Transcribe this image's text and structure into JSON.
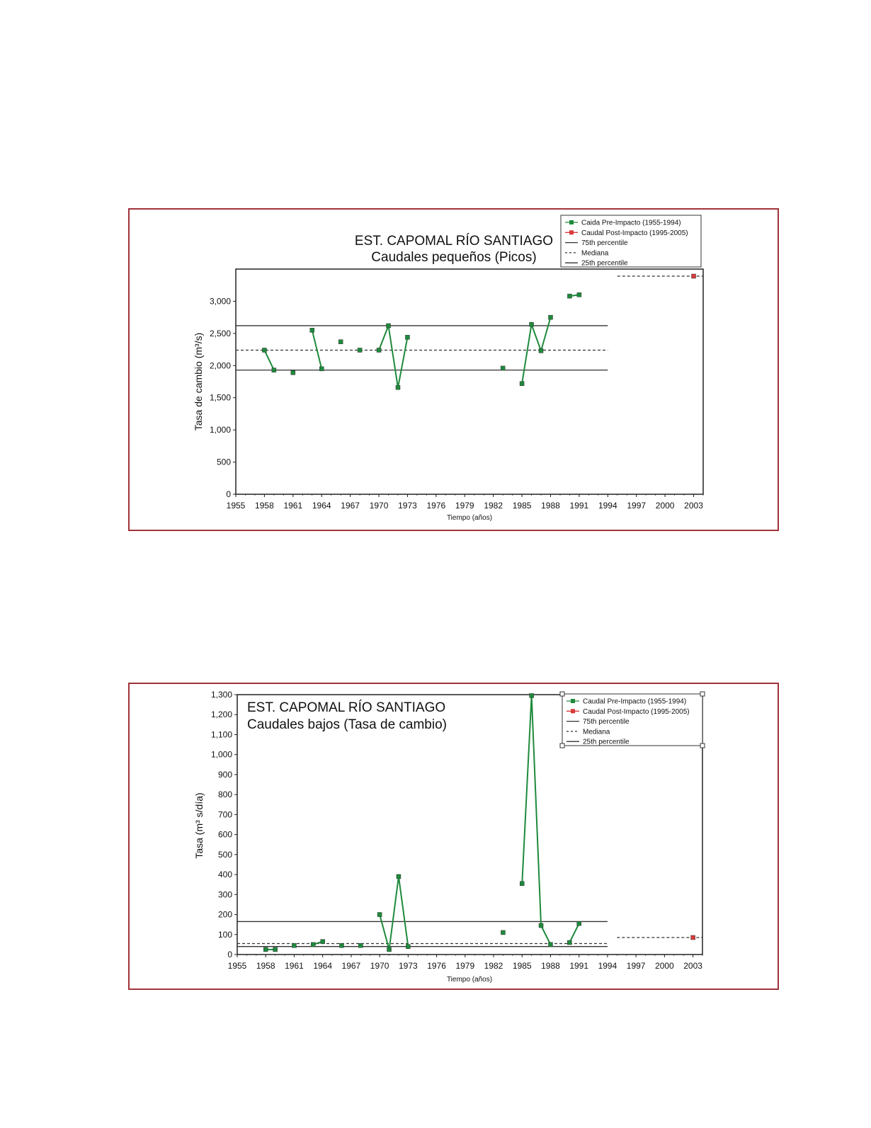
{
  "chart_data": [
    {
      "type": "line",
      "title": "EST. CAPOMAL RÍO SANTIAGO",
      "subtitle": "Caudales pequeños (Picos)",
      "xlabel": "Tiempo (años)",
      "ylabel": "Tasa de cambio (m³/s)",
      "xlim": [
        1955,
        2004
      ],
      "ylim": [
        0,
        3500
      ],
      "x_ticks": [
        1955,
        1958,
        1961,
        1964,
        1967,
        1970,
        1973,
        1976,
        1979,
        1982,
        1985,
        1988,
        1991,
        1994,
        1997,
        2000,
        2003
      ],
      "y_ticks": [
        0,
        500,
        1000,
        1500,
        2000,
        2500,
        3000
      ],
      "y_tick_labels": [
        "0",
        "500",
        "1,000",
        "1,500",
        "2,000",
        "2,500",
        "3,000"
      ],
      "legend_position": "top-right",
      "series": [
        {
          "name": "Caida Pre-Impacto (1955-1994)",
          "color": "#1e8a3c",
          "segments": [
            [
              [
                1958,
                2240
              ],
              [
                1959,
                1930
              ]
            ],
            [
              [
                1961,
                1890
              ]
            ],
            [
              [
                1963,
                2550
              ],
              [
                1964,
                1950
              ]
            ],
            [
              [
                1966,
                2370
              ]
            ],
            [
              [
                1968,
                2240
              ]
            ],
            [
              [
                1970,
                2240
              ],
              [
                1971,
                2620
              ],
              [
                1972,
                1660
              ],
              [
                1973,
                2440
              ]
            ],
            [
              [
                1983,
                1960
              ]
            ],
            [
              [
                1985,
                1720
              ],
              [
                1986,
                2640
              ],
              [
                1987,
                2230
              ],
              [
                1988,
                2750
              ]
            ],
            [
              [
                1990,
                3080
              ],
              [
                1991,
                3100
              ]
            ]
          ]
        },
        {
          "name": "Caudal Post-Impacto (1995-2005)",
          "color": "#d93a3a",
          "segments": [
            [
              [
                2003,
                3390
              ]
            ]
          ]
        }
      ],
      "reference_lines": [
        {
          "name": "75th percentile",
          "y": 2620,
          "x_range": [
            1955,
            1994
          ],
          "style": "solid"
        },
        {
          "name": "Mediana",
          "y": 2240,
          "x_range": [
            1955,
            1994
          ],
          "style": "dashed"
        },
        {
          "name": "25th percentile",
          "y": 1930,
          "x_range": [
            1955,
            1994
          ],
          "style": "solid"
        },
        {
          "name": "",
          "y": 3390,
          "x_range": [
            1995,
            2004
          ],
          "style": "dashed"
        }
      ]
    },
    {
      "type": "line",
      "title": "EST. CAPOMAL RÍO SANTIAGO",
      "subtitle": "Caudales bajos (Tasa de cambio)",
      "xlabel": "Tiempo (años)",
      "ylabel": "Tasa (m³ s/día)",
      "xlim": [
        1955,
        2004
      ],
      "ylim": [
        0,
        1300
      ],
      "x_ticks": [
        1955,
        1958,
        1961,
        1964,
        1967,
        1970,
        1973,
        1976,
        1979,
        1982,
        1985,
        1988,
        1991,
        1994,
        1997,
        2000,
        2003
      ],
      "y_ticks": [
        0,
        100,
        200,
        300,
        400,
        500,
        600,
        700,
        800,
        900,
        1000,
        1100,
        1200,
        1300
      ],
      "y_tick_labels": [
        "0",
        "100",
        "200",
        "300",
        "400",
        "500",
        "600",
        "700",
        "800",
        "900",
        "1,000",
        "1,100",
        "1,200",
        "1,300"
      ],
      "legend_position": "top-right",
      "series": [
        {
          "name": "Caudal Pre-Impacto (1955-1994)",
          "color": "#1e8a3c",
          "segments": [
            [
              [
                1958,
                25
              ],
              [
                1959,
                25
              ]
            ],
            [
              [
                1961,
                45
              ]
            ],
            [
              [
                1963,
                50
              ],
              [
                1964,
                65
              ]
            ],
            [
              [
                1966,
                45
              ]
            ],
            [
              [
                1968,
                45
              ]
            ],
            [
              [
                1970,
                200
              ],
              [
                1971,
                25
              ],
              [
                1972,
                390
              ],
              [
                1973,
                40
              ]
            ],
            [
              [
                1983,
                110
              ]
            ],
            [
              [
                1985,
                355
              ],
              [
                1986,
                1295
              ],
              [
                1987,
                145
              ],
              [
                1988,
                50
              ]
            ],
            [
              [
                1990,
                60
              ],
              [
                1991,
                155
              ]
            ]
          ]
        },
        {
          "name": "Caudal Post-Impacto (1995-2005)",
          "color": "#d93a3a",
          "segments": [
            [
              [
                2003,
                85
              ]
            ]
          ]
        }
      ],
      "reference_lines": [
        {
          "name": "75th percentile",
          "y": 165,
          "x_range": [
            1955,
            1994
          ],
          "style": "solid"
        },
        {
          "name": "Mediana",
          "y": 55,
          "x_range": [
            1955,
            1994
          ],
          "style": "dashed"
        },
        {
          "name": "25th percentile",
          "y": 40,
          "x_range": [
            1955,
            1994
          ],
          "style": "solid"
        },
        {
          "name": "",
          "y": 85,
          "x_range": [
            1995,
            2004
          ],
          "style": "dashed"
        }
      ]
    }
  ]
}
